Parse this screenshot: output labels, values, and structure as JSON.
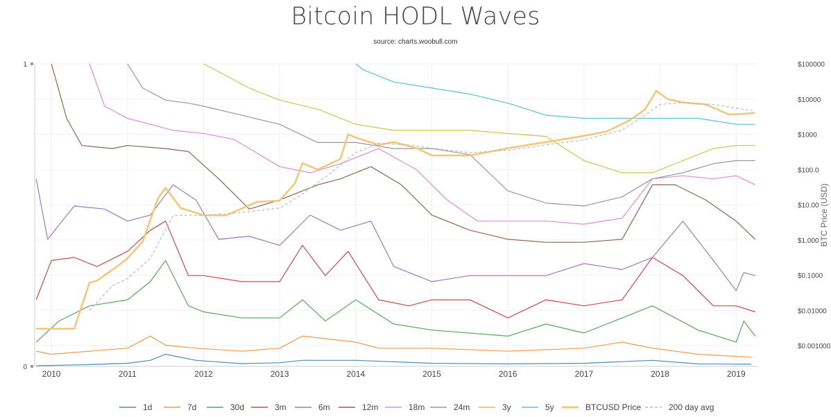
{
  "chart_data": {
    "type": "line",
    "title": "Bitcoin HODL Waves",
    "subtitle": "source: charts.woobull.com",
    "xlabel": "",
    "ylabel": "",
    "y2label": "BTC Price (USD)",
    "xlim": [
      2009.78,
      2019.28
    ],
    "ylim": [
      0,
      1
    ],
    "y_ticks_left": [
      "0",
      "1"
    ],
    "y2_scale": "log",
    "y2_ticks": [
      {
        "label": "$100000",
        "value": 100000
      },
      {
        "label": "$10000",
        "value": 10000
      },
      {
        "label": "$1000",
        "value": 1000
      },
      {
        "label": "$100.0",
        "value": 100
      },
      {
        "label": "$10.00",
        "value": 10
      },
      {
        "label": "$1.000",
        "value": 1
      },
      {
        "label": "$0.1000",
        "value": 0.1
      },
      {
        "label": "$0.01000",
        "value": 0.01
      },
      {
        "label": "$0.001000",
        "value": 0.001
      }
    ],
    "x_ticks": [
      "2010",
      "2011",
      "2012",
      "2013",
      "2014",
      "2015",
      "2016",
      "2017",
      "2018",
      "2019"
    ],
    "grid": true,
    "legend_position": "bottom",
    "series": [
      {
        "name": "1d",
        "color": "#4a8cbf",
        "axis": "left",
        "x": [
          2009.8,
          2010.5,
          2011.0,
          2011.3,
          2011.5,
          2011.9,
          2012.5,
          2013.0,
          2013.3,
          2014.0,
          2015.0,
          2016.0,
          2017.0,
          2017.9,
          2018.5,
          2019.2
        ],
        "y": [
          0.002,
          0.006,
          0.01,
          0.02,
          0.04,
          0.02,
          0.009,
          0.012,
          0.02,
          0.02,
          0.01,
          0.008,
          0.01,
          0.02,
          0.008,
          0.007
        ]
      },
      {
        "name": "7d",
        "color": "#f0994a",
        "axis": "left",
        "x": [
          2009.8,
          2010.0,
          2010.5,
          2011.0,
          2011.3,
          2011.5,
          2011.9,
          2012.5,
          2013.0,
          2013.3,
          2014.0,
          2014.3,
          2015.0,
          2016.0,
          2017.0,
          2017.5,
          2017.9,
          2018.5,
          2019.2
        ],
        "y": [
          0.05,
          0.04,
          0.05,
          0.06,
          0.1,
          0.07,
          0.06,
          0.05,
          0.06,
          0.1,
          0.08,
          0.06,
          0.06,
          0.05,
          0.06,
          0.08,
          0.06,
          0.04,
          0.03
        ]
      },
      {
        "name": "30d",
        "color": "#55aa55",
        "axis": "left",
        "x": [
          2009.8,
          2010.1,
          2010.5,
          2011.0,
          2011.3,
          2011.5,
          2011.8,
          2012.0,
          2012.5,
          2013.0,
          2013.3,
          2013.6,
          2014.0,
          2014.5,
          2015.0,
          2016.0,
          2016.5,
          2017.0,
          2017.5,
          2017.9,
          2018.5,
          2019.0,
          2019.1,
          2019.25
        ],
        "y": [
          0.08,
          0.15,
          0.2,
          0.22,
          0.28,
          0.35,
          0.2,
          0.18,
          0.16,
          0.16,
          0.22,
          0.15,
          0.22,
          0.14,
          0.12,
          0.1,
          0.14,
          0.11,
          0.16,
          0.2,
          0.12,
          0.08,
          0.15,
          0.1
        ]
      },
      {
        "name": "3m",
        "color": "#d04848",
        "axis": "left",
        "x": [
          2009.8,
          2010.0,
          2010.3,
          2010.6,
          2011.0,
          2011.3,
          2011.5,
          2011.8,
          2012.0,
          2012.5,
          2013.0,
          2013.3,
          2013.6,
          2013.9,
          2014.3,
          2014.7,
          2015.0,
          2015.5,
          2016.0,
          2016.5,
          2017.0,
          2017.5,
          2017.9,
          2018.3,
          2018.7,
          2019.0,
          2019.25
        ],
        "y": [
          0.22,
          0.35,
          0.36,
          0.33,
          0.38,
          0.45,
          0.48,
          0.3,
          0.3,
          0.28,
          0.28,
          0.4,
          0.3,
          0.38,
          0.22,
          0.2,
          0.22,
          0.22,
          0.16,
          0.22,
          0.2,
          0.22,
          0.36,
          0.3,
          0.2,
          0.2,
          0.18
        ]
      },
      {
        "name": "6m",
        "color": "#9b79c6",
        "axis": "left",
        "x": [
          2009.8,
          2009.95,
          2010.3,
          2010.7,
          2011.0,
          2011.3,
          2011.6,
          2011.9,
          2012.2,
          2012.6,
          2013.0,
          2013.4,
          2013.8,
          2014.2,
          2014.5,
          2015.0,
          2015.5,
          2016.0,
          2016.5,
          2017.0,
          2017.5,
          2017.9,
          2018.3,
          2018.7,
          2019.0,
          2019.1,
          2019.25
        ],
        "y": [
          0.62,
          0.42,
          0.53,
          0.52,
          0.48,
          0.5,
          0.6,
          0.55,
          0.42,
          0.43,
          0.4,
          0.5,
          0.45,
          0.48,
          0.33,
          0.28,
          0.3,
          0.3,
          0.3,
          0.34,
          0.32,
          0.36,
          0.48,
          0.35,
          0.25,
          0.31,
          0.3
        ]
      },
      {
        "name": "12m",
        "color": "#8b6655",
        "axis": "left",
        "x": [
          2010.0,
          2010.2,
          2010.4,
          2010.8,
          2011.0,
          2011.5,
          2011.8,
          2012.2,
          2012.6,
          2013.0,
          2013.5,
          2013.8,
          2014.2,
          2014.6,
          2015.0,
          2015.5,
          2016.0,
          2016.5,
          2017.0,
          2017.5,
          2017.9,
          2018.2,
          2018.6,
          2019.0,
          2019.25
        ],
        "y": [
          1.0,
          0.82,
          0.73,
          0.72,
          0.73,
          0.72,
          0.71,
          0.62,
          0.52,
          0.55,
          0.6,
          0.62,
          0.66,
          0.6,
          0.5,
          0.45,
          0.42,
          0.41,
          0.41,
          0.42,
          0.6,
          0.6,
          0.55,
          0.48,
          0.42
        ]
      },
      {
        "name": "18m",
        "color": "#e48ad3",
        "axis": "left",
        "x": [
          2010.5,
          2010.7,
          2011.0,
          2011.3,
          2011.6,
          2012.0,
          2012.4,
          2013.0,
          2013.4,
          2013.8,
          2014.3,
          2014.8,
          2015.2,
          2015.6,
          2016.0,
          2016.5,
          2017.0,
          2017.5,
          2017.9,
          2018.3,
          2018.7,
          2019.0,
          2019.25
        ],
        "y": [
          1.0,
          0.86,
          0.82,
          0.8,
          0.78,
          0.77,
          0.75,
          0.66,
          0.64,
          0.67,
          0.72,
          0.65,
          0.55,
          0.48,
          0.48,
          0.48,
          0.47,
          0.49,
          0.62,
          0.63,
          0.62,
          0.63,
          0.6
        ]
      },
      {
        "name": "24m",
        "color": "#999999",
        "axis": "left",
        "x": [
          2011.0,
          2011.2,
          2011.5,
          2011.8,
          2012.0,
          2012.5,
          2013.0,
          2013.5,
          2014.0,
          2014.5,
          2015.0,
          2015.5,
          2016.0,
          2016.5,
          2017.0,
          2017.5,
          2017.9,
          2018.3,
          2018.7,
          2019.0,
          2019.25
        ],
        "y": [
          1.0,
          0.92,
          0.88,
          0.87,
          0.86,
          0.83,
          0.8,
          0.74,
          0.74,
          0.72,
          0.72,
          0.7,
          0.58,
          0.54,
          0.53,
          0.56,
          0.62,
          0.64,
          0.67,
          0.68,
          0.68
        ]
      },
      {
        "name": "3y",
        "color": "#c7c74a",
        "axis": "left",
        "x": [
          2012.0,
          2012.3,
          2012.6,
          2013.0,
          2013.5,
          2014.0,
          2014.5,
          2015.0,
          2015.5,
          2016.0,
          2016.5,
          2017.0,
          2017.5,
          2017.9,
          2018.3,
          2018.7,
          2019.0,
          2019.25
        ],
        "y": [
          1.0,
          0.96,
          0.92,
          0.88,
          0.85,
          0.8,
          0.78,
          0.78,
          0.78,
          0.77,
          0.76,
          0.68,
          0.64,
          0.64,
          0.68,
          0.72,
          0.73,
          0.73
        ]
      },
      {
        "name": "5y",
        "color": "#55c3c9",
        "axis": "left",
        "x": [
          2014.0,
          2014.1,
          2014.5,
          2015.0,
          2015.5,
          2016.0,
          2016.5,
          2017.0,
          2017.5,
          2018.0,
          2018.5,
          2019.0,
          2019.25
        ],
        "y": [
          1.0,
          0.98,
          0.94,
          0.92,
          0.9,
          0.87,
          0.83,
          0.82,
          0.82,
          0.82,
          0.82,
          0.8,
          0.8
        ]
      },
      {
        "name": "BTCUSD Price",
        "color": "#f3c779",
        "axis": "right",
        "x": [
          2009.8,
          2010.3,
          2010.5,
          2010.6,
          2010.9,
          2011.0,
          2011.2,
          2011.4,
          2011.5,
          2011.7,
          2012.0,
          2012.3,
          2012.7,
          2013.0,
          2013.2,
          2013.3,
          2013.5,
          2013.8,
          2013.9,
          2014.0,
          2014.3,
          2014.5,
          2014.8,
          2015.0,
          2015.5,
          2016.0,
          2016.5,
          2017.0,
          2017.3,
          2017.6,
          2017.8,
          2017.95,
          2018.1,
          2018.3,
          2018.6,
          2018.9,
          2019.0,
          2019.25
        ],
        "y": [
          0.003,
          0.003,
          0.06,
          0.07,
          0.2,
          0.3,
          0.9,
          15,
          30,
          8,
          5,
          5,
          12,
          13,
          40,
          150,
          100,
          200,
          1000,
          800,
          500,
          600,
          400,
          250,
          250,
          400,
          600,
          900,
          1200,
          2500,
          5000,
          17000,
          10000,
          8000,
          7000,
          3700,
          3700,
          4000
        ]
      },
      {
        "name": "200 day avg",
        "color": "#bbbbbb",
        "axis": "right",
        "dashed": true,
        "x": [
          2010.5,
          2010.8,
          2011.0,
          2011.3,
          2011.6,
          2012.0,
          2012.5,
          2013.0,
          2013.3,
          2013.7,
          2014.0,
          2014.3,
          2014.7,
          2015.0,
          2015.5,
          2016.0,
          2016.5,
          2017.0,
          2017.5,
          2017.8,
          2018.0,
          2018.3,
          2018.7,
          2019.0,
          2019.25
        ],
        "y": [
          0.01,
          0.05,
          0.08,
          0.3,
          5,
          5,
          6,
          8,
          20,
          90,
          300,
          550,
          500,
          400,
          300,
          350,
          500,
          700,
          1300,
          3500,
          7000,
          8000,
          7000,
          5500,
          4500
        ]
      }
    ]
  }
}
